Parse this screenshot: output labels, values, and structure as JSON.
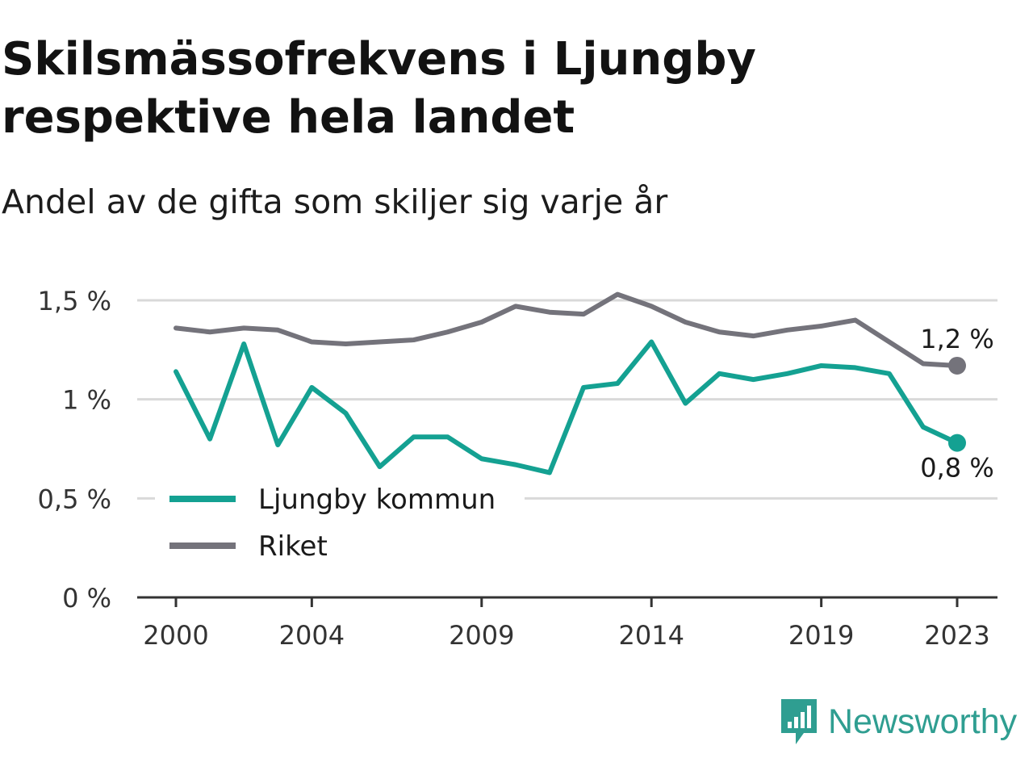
{
  "title": "Skilsmässofrekvens i Ljungby respektive hela landet",
  "subtitle": "Andel av de gifta som skiljer sig varje år",
  "brand": {
    "name": "Newsworthy",
    "icon": "newsworthy-logo-icon",
    "color": "#2f9e91"
  },
  "chart_data": {
    "type": "line",
    "x": [
      2000,
      2001,
      2002,
      2003,
      2004,
      2005,
      2006,
      2007,
      2008,
      2009,
      2010,
      2011,
      2012,
      2013,
      2014,
      2015,
      2016,
      2017,
      2018,
      2019,
      2020,
      2021,
      2022,
      2023
    ],
    "x_ticks": [
      2000,
      2004,
      2009,
      2014,
      2019,
      2023
    ],
    "x_tick_labels": [
      "2000",
      "2004",
      "2009",
      "2014",
      "2019",
      "2023"
    ],
    "y_ticks": [
      0,
      0.5,
      1,
      1.5
    ],
    "y_tick_labels": [
      "0 %",
      "0,5 %",
      "1 %",
      "1,5 %"
    ],
    "ylim": [
      0,
      1.5
    ],
    "grid": "horizontal",
    "legend_position": "bottom-left",
    "series": [
      {
        "name": "Ljungby kommun",
        "color": "#14a192",
        "values": [
          1.14,
          0.8,
          1.28,
          0.77,
          1.06,
          0.93,
          0.66,
          0.81,
          0.81,
          0.7,
          0.67,
          0.63,
          1.06,
          1.08,
          1.29,
          0.98,
          1.13,
          1.1,
          1.13,
          1.17,
          1.16,
          1.13,
          0.86,
          0.78
        ],
        "end_label": "0,8 %"
      },
      {
        "name": "Riket",
        "color": "#74737b",
        "values": [
          1.36,
          1.34,
          1.36,
          1.35,
          1.29,
          1.28,
          1.29,
          1.3,
          1.34,
          1.39,
          1.47,
          1.44,
          1.43,
          1.53,
          1.47,
          1.39,
          1.34,
          1.32,
          1.35,
          1.37,
          1.4,
          1.29,
          1.18,
          1.17
        ],
        "end_label": "1,2 %"
      }
    ]
  }
}
